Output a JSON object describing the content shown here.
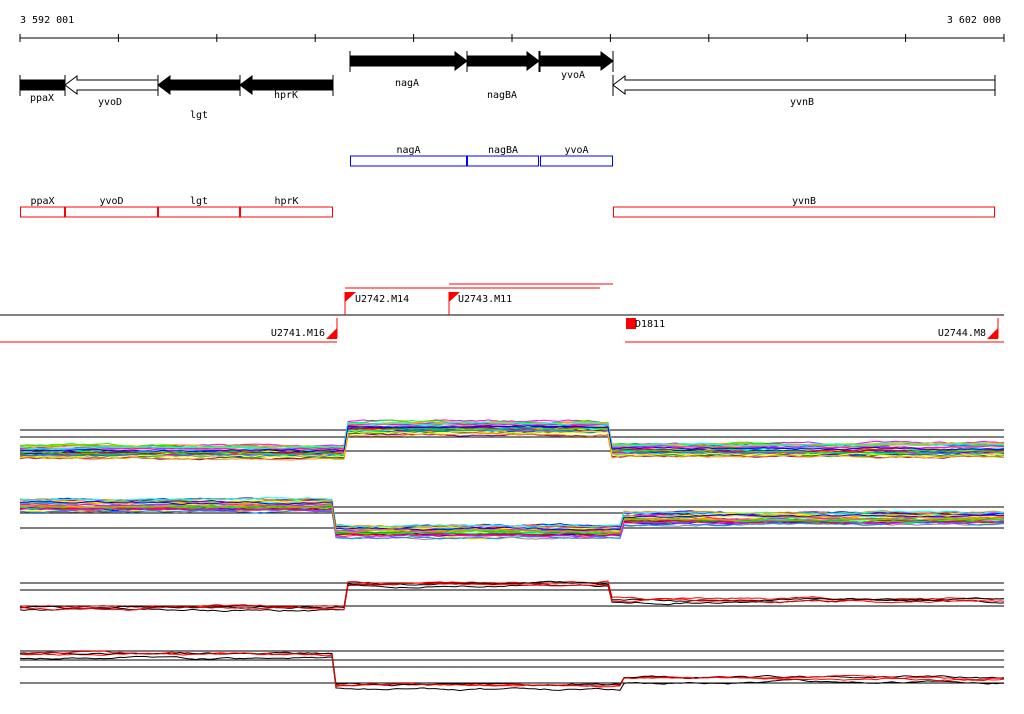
{
  "ruler": {
    "start_label": "3 592 001",
    "end_label": "3 602 000"
  },
  "genes": [
    {
      "name": "ppaX",
      "strand": "-",
      "style": "filled"
    },
    {
      "name": "yvoD",
      "strand": "-",
      "style": "outline"
    },
    {
      "name": "lgt",
      "strand": "-",
      "style": "filled"
    },
    {
      "name": "hprK",
      "strand": "-",
      "style": "filled"
    },
    {
      "name": "nagA",
      "strand": "+",
      "style": "filled"
    },
    {
      "name": "nagBA",
      "strand": "+",
      "style": "filled"
    },
    {
      "name": "yvoA",
      "strand": "+",
      "style": "filled"
    },
    {
      "name": "yvnB",
      "strand": "-",
      "style": "outline"
    }
  ],
  "forward_boxes": [
    "nagA",
    "nagBA",
    "yvoA"
  ],
  "reverse_boxes": [
    "ppaX",
    "yvoD",
    "lgt",
    "hprK",
    "yvnB"
  ],
  "transcripts": [
    "U2742.M14",
    "U2743.M11",
    "U2741.M16",
    "D1811",
    "U2744.M8"
  ],
  "colors": {
    "forward_box": "#0000ff",
    "reverse_box": "#ff0000",
    "transcript": "#ff0000"
  }
}
